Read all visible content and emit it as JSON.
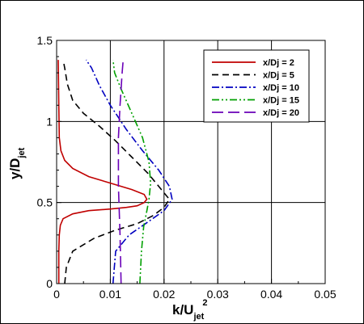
{
  "chart_data": {
    "type": "line",
    "xlabel": {
      "main": "k/U",
      "sub": "jet",
      "sup": "2"
    },
    "ylabel": {
      "main": "y/D",
      "sub": "jet"
    },
    "xlim": [
      0,
      0.05
    ],
    "ylim": [
      0,
      1.5
    ],
    "xticks": [
      0,
      0.01,
      0.02,
      0.03,
      0.04,
      0.05
    ],
    "xtick_labels": [
      "0",
      "0.01",
      "0.02",
      "0.03",
      "0.04",
      "0.05"
    ],
    "yticks": [
      0,
      0.5,
      1,
      1.5
    ],
    "ytick_labels": [
      "0",
      "0.5",
      "1",
      "1.5"
    ],
    "grid": true,
    "legend_position": "top-right",
    "series": [
      {
        "name": "x/Dj = 2",
        "color": "#c00000",
        "dash": "solid",
        "points": [
          [
            0.0004,
            0.0
          ],
          [
            0.0004,
            0.2
          ],
          [
            0.0005,
            0.3
          ],
          [
            0.0007,
            0.36
          ],
          [
            0.0012,
            0.4
          ],
          [
            0.003,
            0.43
          ],
          [
            0.006,
            0.45
          ],
          [
            0.01,
            0.46
          ],
          [
            0.013,
            0.47
          ],
          [
            0.015,
            0.48
          ],
          [
            0.0163,
            0.5
          ],
          [
            0.0168,
            0.52
          ],
          [
            0.0163,
            0.55
          ],
          [
            0.014,
            0.58
          ],
          [
            0.01,
            0.62
          ],
          [
            0.006,
            0.66
          ],
          [
            0.003,
            0.71
          ],
          [
            0.0015,
            0.76
          ],
          [
            0.0008,
            0.82
          ],
          [
            0.0005,
            0.9
          ],
          [
            0.0004,
            1.1
          ],
          [
            0.0003,
            1.38
          ]
        ]
      },
      {
        "name": "x/Dj = 5",
        "color": "#000000",
        "dash": "dash",
        "points": [
          [
            0.0015,
            0.0
          ],
          [
            0.0018,
            0.1
          ],
          [
            0.003,
            0.2
          ],
          [
            0.007,
            0.28
          ],
          [
            0.011,
            0.33
          ],
          [
            0.015,
            0.37
          ],
          [
            0.018,
            0.42
          ],
          [
            0.02,
            0.47
          ],
          [
            0.021,
            0.52
          ],
          [
            0.0195,
            0.58
          ],
          [
            0.017,
            0.68
          ],
          [
            0.014,
            0.78
          ],
          [
            0.011,
            0.88
          ],
          [
            0.008,
            0.97
          ],
          [
            0.005,
            1.05
          ],
          [
            0.003,
            1.13
          ],
          [
            0.002,
            1.23
          ],
          [
            0.0015,
            1.33
          ],
          [
            0.0012,
            1.38
          ]
        ]
      },
      {
        "name": "x/Dj = 10",
        "color": "#0000c0",
        "dash": "dashdot",
        "points": [
          [
            0.0105,
            0.0
          ],
          [
            0.011,
            0.2
          ],
          [
            0.0135,
            0.3
          ],
          [
            0.017,
            0.38
          ],
          [
            0.02,
            0.45
          ],
          [
            0.0215,
            0.52
          ],
          [
            0.021,
            0.6
          ],
          [
            0.019,
            0.7
          ],
          [
            0.016,
            0.82
          ],
          [
            0.013,
            0.95
          ],
          [
            0.01,
            1.1
          ],
          [
            0.008,
            1.22
          ],
          [
            0.0065,
            1.33
          ],
          [
            0.0055,
            1.38
          ]
        ]
      },
      {
        "name": "x/Dj = 15",
        "color": "#00a000",
        "dash": "dashdotdot",
        "points": [
          [
            0.0155,
            0.0
          ],
          [
            0.0158,
            0.2
          ],
          [
            0.0162,
            0.35
          ],
          [
            0.0168,
            0.45
          ],
          [
            0.0172,
            0.52
          ],
          [
            0.0175,
            0.62
          ],
          [
            0.0172,
            0.75
          ],
          [
            0.016,
            0.9
          ],
          [
            0.014,
            1.05
          ],
          [
            0.012,
            1.2
          ],
          [
            0.0108,
            1.3
          ],
          [
            0.0105,
            1.38
          ]
        ]
      },
      {
        "name": "x/Dj = 20",
        "color": "#6a00b8",
        "dash": "longdash",
        "points": [
          [
            0.012,
            0.0
          ],
          [
            0.0118,
            0.3
          ],
          [
            0.0115,
            0.6
          ],
          [
            0.0115,
            0.9
          ],
          [
            0.0118,
            1.1
          ],
          [
            0.0122,
            1.3
          ],
          [
            0.0124,
            1.38
          ]
        ]
      }
    ]
  }
}
